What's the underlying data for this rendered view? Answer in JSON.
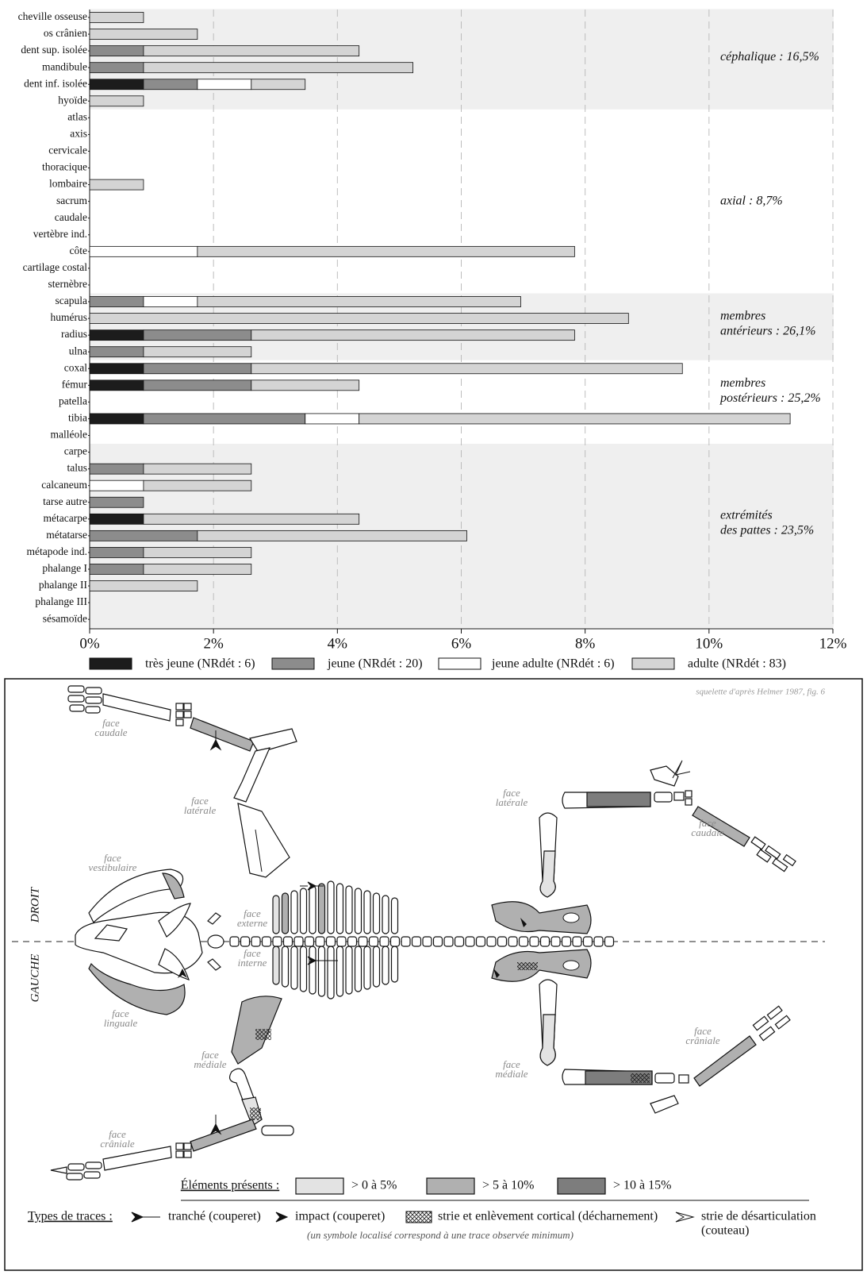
{
  "chart_data": {
    "type": "bar",
    "orientation": "horizontal",
    "stacked": true,
    "categories": [
      "cheville osseuse",
      "os crânien",
      "dent sup. isolée",
      "mandibule",
      "dent inf. isolée",
      "hyoïde",
      "atlas",
      "axis",
      "cervicale",
      "thoracique",
      "lombaire",
      "sacrum",
      "caudale",
      "vertèbre ind.",
      "côte",
      "cartilage costal",
      "sternèbre",
      "scapula",
      "humérus",
      "radius",
      "ulna",
      "coxal",
      "fémur",
      "patella",
      "tibia",
      "malléole",
      "carpe",
      "talus",
      "calcaneum",
      "tarse autre",
      "métacarpe",
      "métatarse",
      "métapode ind.",
      "phalange I",
      "phalange II",
      "phalange III",
      "sésamoïde"
    ],
    "series": [
      {
        "name": "très jeune (NRdét : 6)",
        "color": "#1c1c1c",
        "values": [
          0,
          0,
          0,
          0,
          0.87,
          0,
          0,
          0,
          0,
          0,
          0,
          0,
          0,
          0,
          0,
          0,
          0,
          0,
          0,
          0.87,
          0,
          0.87,
          0.87,
          0,
          0.87,
          0,
          0,
          0,
          0,
          0,
          0.87,
          0,
          0,
          0,
          0,
          0,
          0
        ]
      },
      {
        "name": "jeune (NRdét : 20)",
        "color": "#8c8c8c",
        "values": [
          0,
          0,
          0.87,
          0.87,
          0.87,
          0,
          0,
          0,
          0,
          0,
          0,
          0,
          0,
          0,
          0,
          0,
          0,
          0.87,
          0,
          1.74,
          0.87,
          1.74,
          1.74,
          0,
          2.61,
          0,
          0,
          0.87,
          0,
          0.87,
          0,
          1.74,
          0.87,
          0.87,
          0,
          0,
          0
        ]
      },
      {
        "name": "jeune adulte (NRdét : 6)",
        "color": "#ffffff",
        "values": [
          0,
          0,
          0,
          0,
          0.87,
          0,
          0,
          0,
          0,
          0,
          0,
          0,
          0,
          0,
          1.74,
          0,
          0,
          0.87,
          0,
          0,
          0,
          0,
          0,
          0,
          0.87,
          0,
          0,
          0,
          0.87,
          0,
          0,
          0,
          0,
          0,
          0,
          0,
          0
        ]
      },
      {
        "name": "adulte (NRdét : 83)",
        "color": "#d4d4d4",
        "values": [
          0.87,
          1.74,
          3.48,
          4.35,
          0.87,
          0.87,
          0,
          0,
          0,
          0,
          0.87,
          0,
          0,
          0,
          6.09,
          0,
          0,
          5.22,
          8.7,
          5.22,
          1.74,
          6.96,
          1.74,
          0,
          6.96,
          0,
          0,
          1.74,
          1.74,
          0,
          3.48,
          4.35,
          1.74,
          1.74,
          1.74,
          0,
          0
        ]
      }
    ],
    "groups": [
      {
        "label": [
          "céphalique : 16,5%"
        ]
      },
      {
        "label": [
          "axial : 8,7%"
        ]
      },
      {
        "label": [
          "membres",
          "antérieurs : 26,1%"
        ]
      },
      {
        "label": [
          "membres",
          "postérieurs : 25,2%"
        ]
      },
      {
        "label": [
          "extrémités",
          "des pattes : 23,5%"
        ]
      }
    ],
    "xlim": [
      0,
      12
    ],
    "xticks": [
      {
        "value": 0,
        "label": "0%"
      },
      {
        "value": 2,
        "label": "2%"
      },
      {
        "value": 4,
        "label": "4%"
      },
      {
        "value": 6,
        "label": "6%"
      },
      {
        "value": 8,
        "label": "8%"
      },
      {
        "value": 10,
        "label": "10%"
      },
      {
        "value": 12,
        "label": "12%"
      }
    ],
    "grid": true
  },
  "skeleton": {
    "credit": "squelette d'après Helmer 1987, fig. 6",
    "sides": [
      "DROIT",
      "GAUCHE"
    ],
    "faces": [
      [
        "face",
        "caudale"
      ],
      [
        "face",
        "latérale"
      ],
      [
        "face",
        "vestibulaire"
      ],
      [
        "face",
        "externe"
      ],
      [
        "face",
        "interne"
      ],
      [
        "face",
        "linguale"
      ],
      [
        "face",
        "médiale"
      ],
      [
        "face",
        "crâniale"
      ],
      [
        "face",
        "latérale"
      ],
      [
        "face",
        "caudale"
      ],
      [
        "face",
        "crâniale"
      ],
      [
        "face",
        "médiale"
      ]
    ],
    "legend": {
      "title": "Éléments présents :",
      "levels": [
        "> 0 à 5%",
        "> 5 à 10%",
        "> 10 à 15%"
      ]
    },
    "traces": {
      "title": "Types de traces :",
      "items": [
        [
          "tranché (couperet)"
        ],
        [
          "impact (couperet)"
        ],
        [
          "strie et enlèvement cortical (décharnement)"
        ],
        [
          "strie de désarticulation",
          "(couteau)"
        ]
      ],
      "note": "(un symbole localisé correspond à une trace observée minimum)"
    }
  }
}
